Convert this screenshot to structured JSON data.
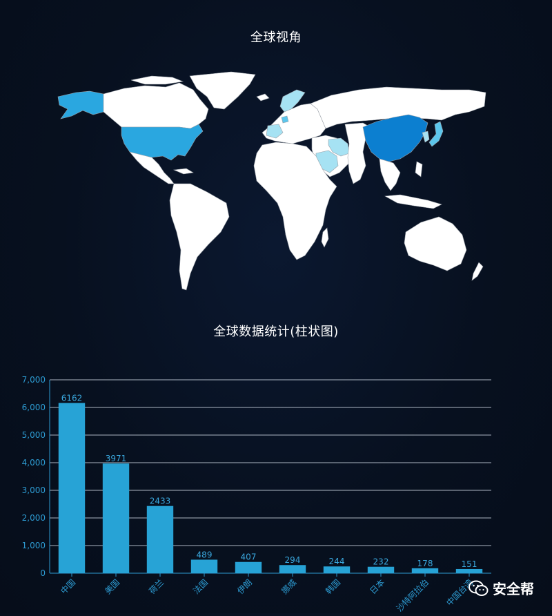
{
  "map": {
    "title": "全球视角",
    "colors": {
      "land": "#ffffff",
      "border": "#9aa0a8",
      "usa": "#2aa7e0",
      "china": "#0c7fd0",
      "light": "#a6e2f3",
      "mid": "#5cc6ec"
    }
  },
  "chart": {
    "title": "全球数据统计(柱状图)"
  },
  "chart_data": {
    "type": "bar",
    "title": "全球数据统计(柱状图)",
    "categories": [
      "中国",
      "美国",
      "荷兰",
      "法国",
      "伊朗",
      "挪威",
      "韩国",
      "日本",
      "沙特阿拉伯",
      "中国台湾"
    ],
    "values": [
      6162,
      3971,
      2433,
      489,
      407,
      294,
      244,
      232,
      178,
      151
    ],
    "ylim": [
      0,
      7000
    ],
    "yticks": [
      "0",
      "1,000",
      "2,000",
      "3,000",
      "4,000",
      "5,000",
      "6,000",
      "7,000"
    ],
    "grid": true,
    "bar_color": "#27a3d6"
  },
  "watermark": {
    "text": "安全帮",
    "icon": "wechat-icon"
  }
}
